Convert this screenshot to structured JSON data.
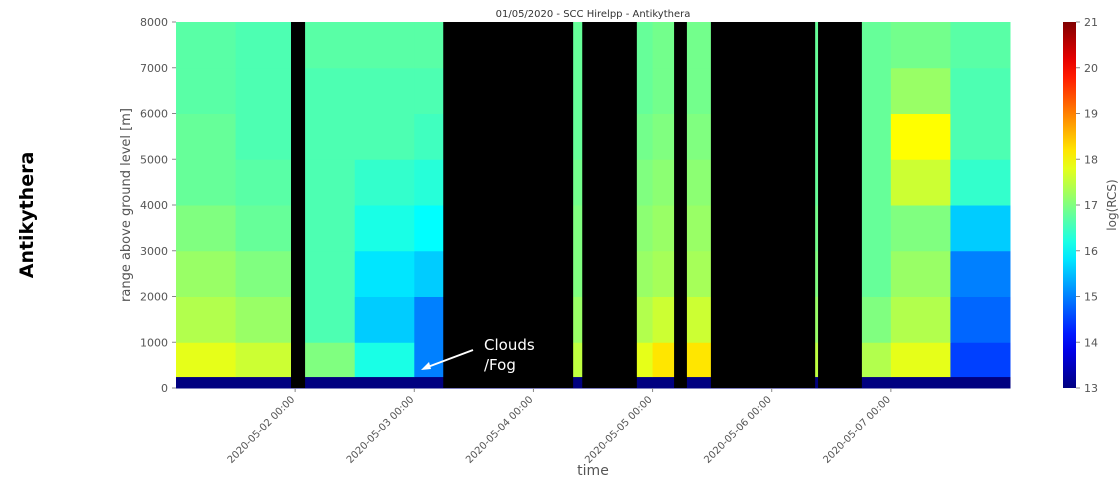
{
  "chart_data": {
    "type": "heatmap",
    "title": "01/05/2020 - SCC Hirelpp - Antikythera",
    "station_label": "Antikythera",
    "xlabel": "time",
    "ylabel": "range above ground level [m]",
    "colorbar_label": "log(RCS)",
    "xlim": [
      "2020-05-01 00:00",
      "2020-05-08 00:00"
    ],
    "xticks": [
      "2020-05-02 00:00",
      "2020-05-03 00:00",
      "2020-05-04 00:00",
      "2020-05-05 00:00",
      "2020-05-06 00:00",
      "2020-05-07 00:00"
    ],
    "ylim": [
      0,
      8000
    ],
    "yticks": [
      0,
      1000,
      2000,
      3000,
      4000,
      5000,
      6000,
      7000,
      8000
    ],
    "zlim": [
      13,
      21
    ],
    "zticks": [
      13,
      14,
      15,
      16,
      17,
      18,
      19,
      20,
      21
    ],
    "colormap": "jet",
    "x_edges": [
      "2020-05-01 00:00",
      "2020-05-01 12:00",
      "2020-05-02 00:00",
      "2020-05-02 12:00",
      "2020-05-03 00:00",
      "2020-05-03 12:00",
      "2020-05-04 00:00",
      "2020-05-04 12:00",
      "2020-05-05 00:00",
      "2020-05-05 12:00",
      "2020-05-06 00:00",
      "2020-05-06 12:00",
      "2020-05-07 00:00",
      "2020-05-07 12:00",
      "2020-05-08 00:00"
    ],
    "y_edges": [
      0,
      250,
      1000,
      2000,
      3000,
      4000,
      5000,
      6000,
      7000,
      8000
    ],
    "z": [
      [
        13,
        13,
        13,
        13,
        13,
        13,
        13,
        13,
        13,
        13,
        13,
        13,
        13,
        13
      ],
      [
        17.8,
        17.6,
        17,
        16.2,
        15,
        15.5,
        17.5,
        17.8,
        18.2,
        17.6,
        17.5,
        17.4,
        17.8,
        14.5
      ],
      [
        17.4,
        17.2,
        16.6,
        15.6,
        15,
        16,
        17.2,
        17.4,
        17.6,
        17.2,
        17.2,
        17,
        17.4,
        14.8
      ],
      [
        17.2,
        17,
        16.6,
        15.8,
        15.6,
        16.2,
        17,
        17.2,
        17.3,
        17,
        17,
        16.8,
        17.2,
        15
      ],
      [
        17,
        16.8,
        16.6,
        16.2,
        16,
        16.4,
        17,
        17.1,
        17.2,
        16.9,
        16.9,
        16.8,
        17,
        15.6
      ],
      [
        16.8,
        16.7,
        16.6,
        16.4,
        16.3,
        16.6,
        16.9,
        17,
        17.1,
        16.8,
        16.8,
        16.8,
        17.6,
        16.4
      ],
      [
        16.8,
        16.6,
        16.6,
        16.6,
        16.5,
        16.7,
        16.8,
        16.9,
        17,
        16.8,
        16.8,
        16.8,
        18,
        16.6
      ],
      [
        16.7,
        16.6,
        16.6,
        16.6,
        16.6,
        16.7,
        16.8,
        16.8,
        16.9,
        16.8,
        16.8,
        16.8,
        17.2,
        16.6
      ],
      [
        16.7,
        16.6,
        16.7,
        16.7,
        16.7,
        16.8,
        16.8,
        16.8,
        16.9,
        16.8,
        16.8,
        16.8,
        16.9,
        16.7
      ]
    ],
    "gaps": [
      [
        "2020-05-01 23:10",
        "2020-05-02 02:00"
      ],
      [
        "2020-05-03 05:50",
        "2020-05-04 08:00"
      ],
      [
        "2020-05-04 09:50",
        "2020-05-04 20:50"
      ],
      [
        "2020-05-05 04:20",
        "2020-05-05 06:55"
      ],
      [
        "2020-05-05 11:45",
        "2020-05-06 08:45"
      ],
      [
        "2020-05-06 09:20",
        "2020-05-06 18:10"
      ]
    ],
    "annotation": {
      "lines": [
        "Clouds",
        "/Fog"
      ]
    }
  }
}
